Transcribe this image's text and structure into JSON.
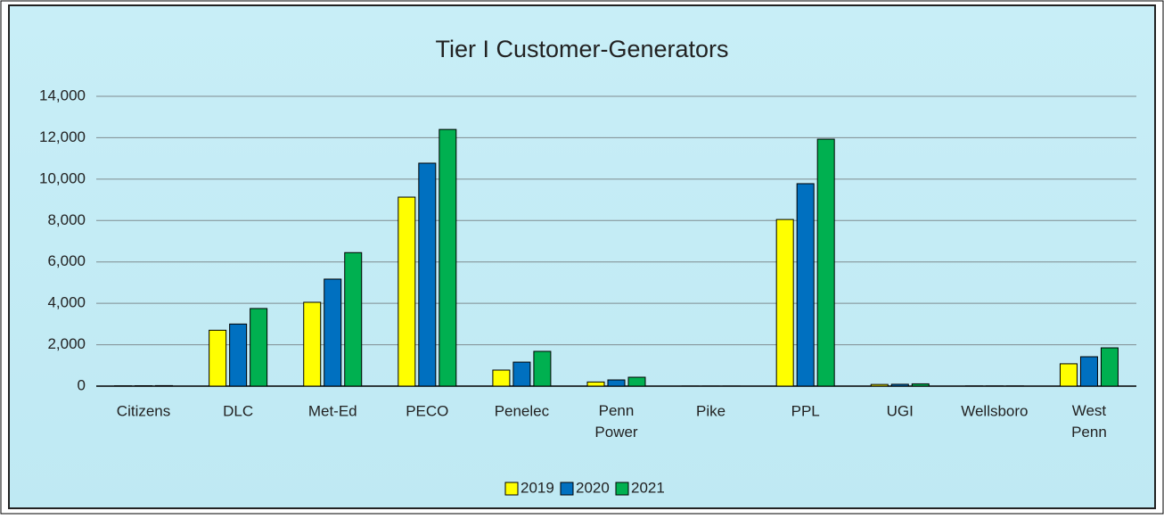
{
  "chart_data": {
    "type": "bar",
    "title": "Tier I Customer-Generators",
    "categories": [
      "Citizens",
      "DLC",
      "Met-Ed",
      "PECO",
      "Penelec",
      "Penn Power",
      "Pike",
      "PPL",
      "UGI",
      "Wellsboro",
      "West Penn"
    ],
    "series": [
      {
        "name": "2019",
        "color": "#ffff00",
        "values": [
          15,
          2700,
          4050,
          9130,
          775,
          200,
          5,
          8050,
          80,
          10,
          1080
        ]
      },
      {
        "name": "2020",
        "color": "#0070c0",
        "values": [
          20,
          3000,
          5170,
          10770,
          1160,
          300,
          5,
          9780,
          90,
          10,
          1420
        ]
      },
      {
        "name": "2021",
        "color": "#00b050",
        "values": [
          25,
          3750,
          6450,
          12400,
          1680,
          430,
          5,
          11930,
          110,
          10,
          1850
        ]
      }
    ],
    "ylim": [
      0,
      14000
    ],
    "yticks": [
      0,
      {
        "value": 2000,
        "label": "2,000"
      },
      {
        "value": 4000,
        "label": "4,000"
      },
      {
        "value": 6000,
        "label": "6,000"
      },
      {
        "value": 8000,
        "label": "8,000"
      },
      {
        "value": 10000,
        "label": "10,000"
      },
      {
        "value": 12000,
        "label": "12,000"
      },
      {
        "value": 14000,
        "label": "14,000"
      }
    ],
    "grid": true,
    "legend": "bottom"
  }
}
